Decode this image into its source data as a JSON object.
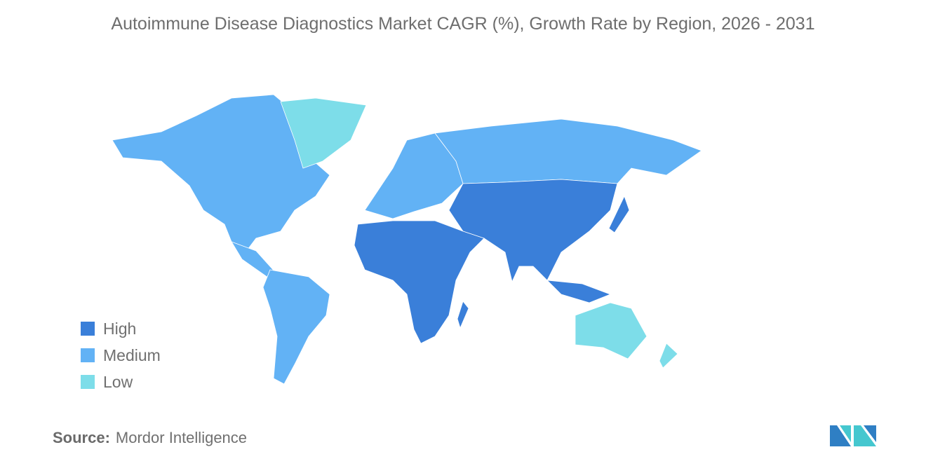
{
  "title": "Autoimmune Disease Diagnostics Market CAGR (%), Growth Rate by Region, 2026 - 2031",
  "colors": {
    "High": "#3a7fd9",
    "Medium": "#62b2f5",
    "Low": "#7ddde9",
    "No data": "#a3a3a3"
  },
  "legend": [
    {
      "label": "High",
      "color": "#3a7fd9"
    },
    {
      "label": "Medium",
      "color": "#62b2f5"
    },
    {
      "label": "Low",
      "color": "#7ddde9"
    }
  ],
  "chart_data": {
    "type": "choropleth",
    "title": "Autoimmune Disease Diagnostics Market CAGR (%), Growth Rate by Region, 2026 - 2031",
    "regions": [
      {
        "region": "North America",
        "category": "Medium"
      },
      {
        "region": "South America",
        "category": "Medium"
      },
      {
        "region": "Europe",
        "category": "Medium"
      },
      {
        "region": "Russia",
        "category": "Medium"
      },
      {
        "region": "Asia",
        "category": "High"
      },
      {
        "region": "Middle East and Africa",
        "category": "High"
      },
      {
        "region": "Australia and New Zealand",
        "category": "Low"
      },
      {
        "region": "Greenland",
        "category": "Low"
      }
    ],
    "legend_position": "bottom-left"
  },
  "source": {
    "label": "Source:",
    "value": "Mordor Intelligence"
  }
}
